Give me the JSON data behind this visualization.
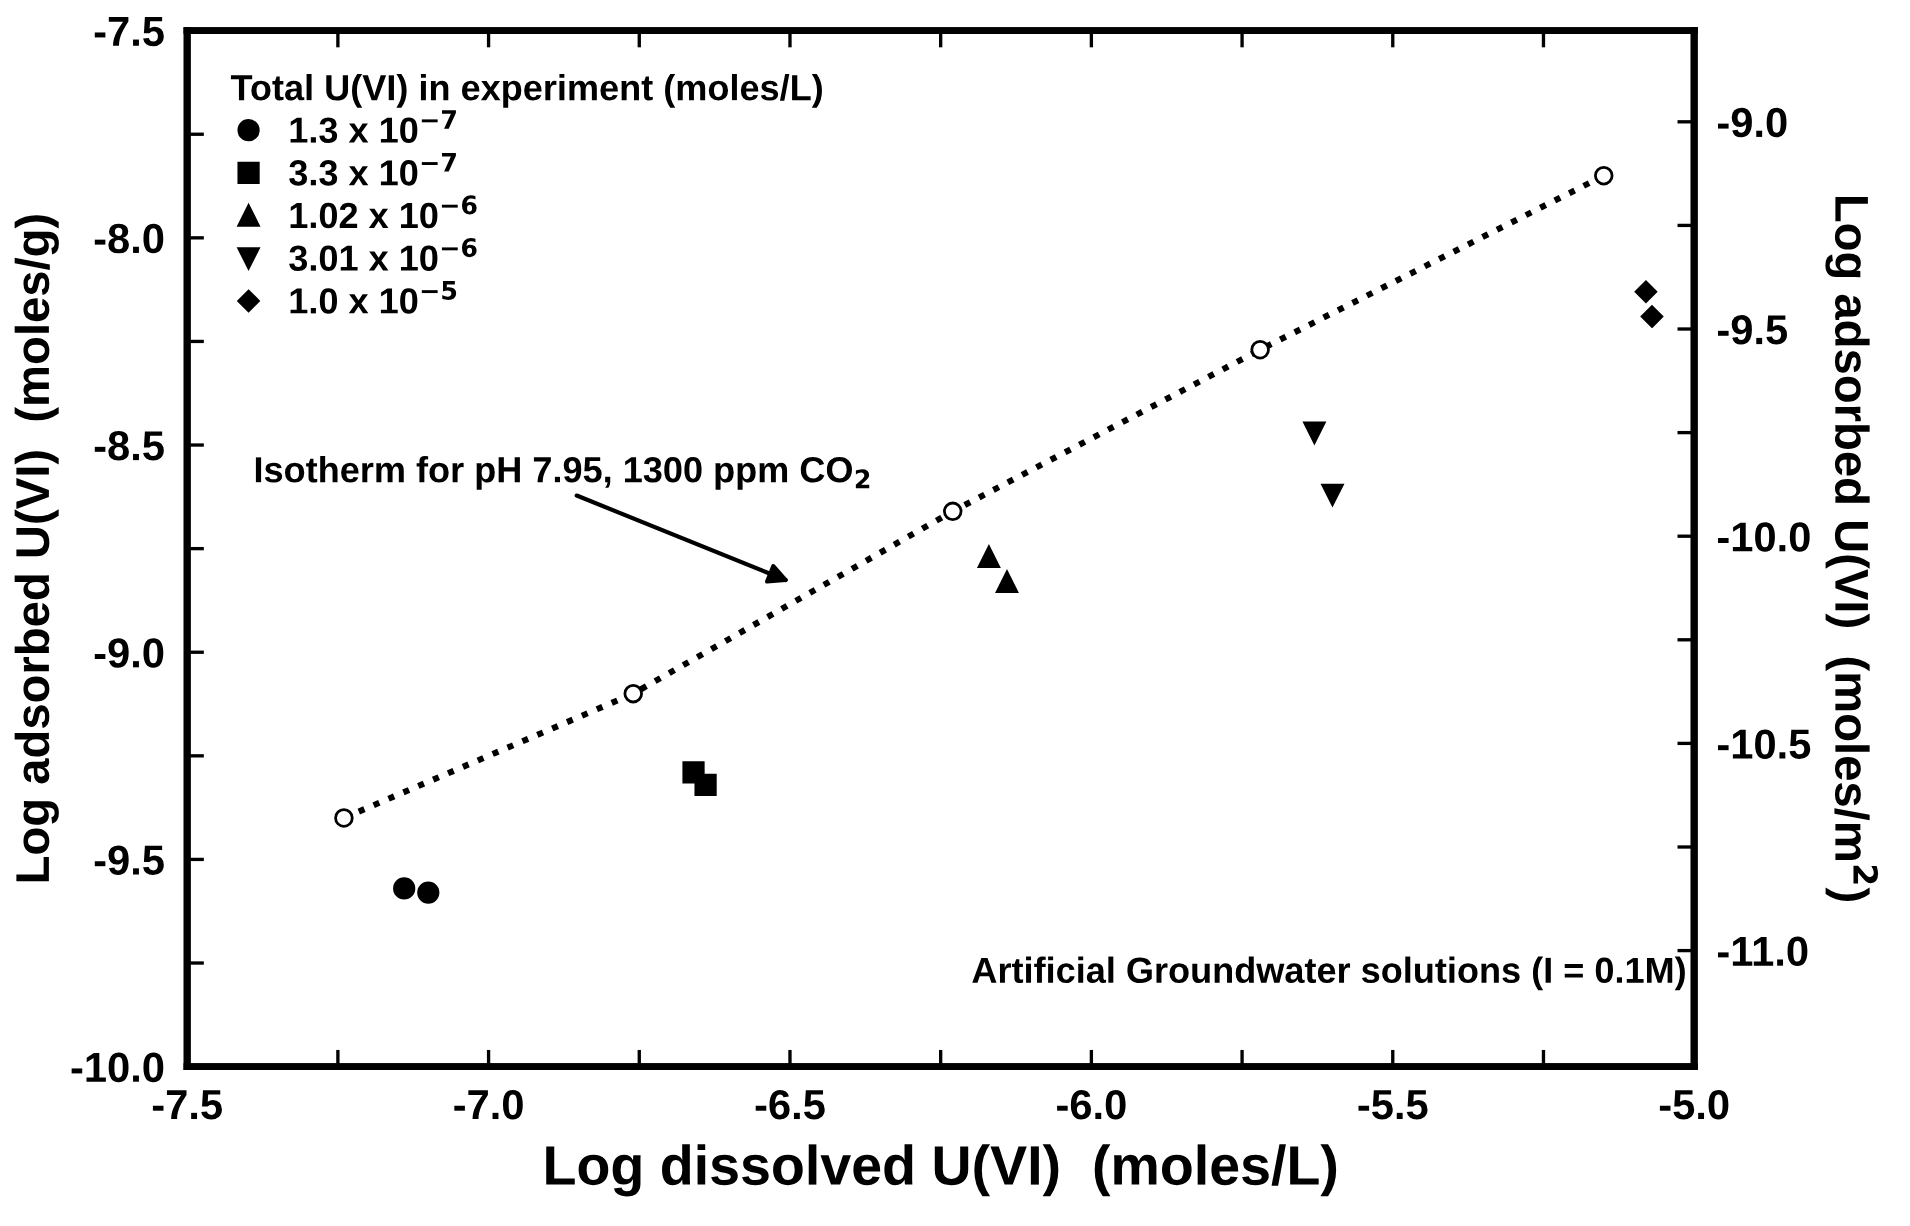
{
  "chart_data": {
    "type": "scatter",
    "xlabel": "Log dissolved U(VI)  (moles/L)",
    "ylabel": "Log adsorbed U(VI)  (moles/g)",
    "y2label": "Log adsorbed U(VI)  (moles/m$^{2}$)",
    "legend_title": "Total U(VI) in experiment (moles/L)",
    "legend": "top left",
    "grid": false,
    "xlim": [
      -7.5,
      -5.0
    ],
    "xticks": [
      -7.5,
      {
        "value": -7.25,
        "label": null
      },
      {
        "value": -7.0,
        "label": "-7.0"
      },
      {
        "value": -6.75,
        "label": null
      },
      -6.5,
      {
        "value": -6.25,
        "label": null
      },
      {
        "value": -6.0,
        "label": "-6.0"
      },
      {
        "value": -5.75,
        "label": null
      },
      -5.5,
      {
        "value": -5.25,
        "label": null
      },
      {
        "value": -5.0,
        "label": "-5.0"
      }
    ],
    "ylim": [
      -10.0,
      -7.5
    ],
    "yticks": [
      {
        "value": -10.0,
        "label": "-10.0"
      },
      {
        "value": -9.75,
        "label": null
      },
      -9.5,
      {
        "value": -9.25,
        "label": null
      },
      {
        "value": -9.0,
        "label": "-9.0"
      },
      {
        "value": -8.75,
        "label": null
      },
      -8.5,
      {
        "value": -8.25,
        "label": null
      },
      {
        "value": -8.0,
        "label": "-8.0"
      },
      {
        "value": -7.75,
        "label": null
      },
      -7.5
    ],
    "y2lim": [
      -11.28,
      -8.78
    ],
    "y2ticks": [
      {
        "value": -11.0,
        "label": "-11.0"
      },
      {
        "value": -10.75,
        "label": null
      },
      -10.5,
      {
        "value": -10.25,
        "label": null
      },
      {
        "value": -10.0,
        "label": "-10.0"
      },
      {
        "value": -9.75,
        "label": null
      },
      -9.5,
      {
        "value": -9.25,
        "label": null
      },
      {
        "value": -9.0,
        "label": "-9.0"
      }
    ],
    "annotations": [
      "Isotherm for pH 7.95, 1300 ppm CO$_{2}$",
      "Artificial Groundwater solutions (I = 0.1M)"
    ],
    "series": [
      {
        "name": "1.3 x 10$^{−7}$",
        "color": "#000000",
        "marker": "circle",
        "x": [
          -7.14,
          -7.1
        ],
        "values": [
          -9.57,
          -9.58
        ]
      },
      {
        "name": "3.3 x 10$^{−7}$",
        "color": "#000000",
        "marker": "square",
        "x": [
          -6.66,
          -6.64
        ],
        "values": [
          -9.29,
          -9.32
        ]
      },
      {
        "name": "1.02 x 10$^{−6}$",
        "color": "#000000",
        "marker": "triangle",
        "x": [
          -6.17,
          -6.14
        ],
        "values": [
          -8.77,
          -8.83
        ]
      },
      {
        "name": "3.01 x 10$^{−6}$",
        "color": "#000000",
        "marker": "triangle_down",
        "x": [
          -5.63,
          -5.6
        ],
        "values": [
          -8.47,
          -8.62
        ]
      },
      {
        "name": "1.0 x 10$^{−5}$",
        "color": "#000000",
        "marker": "diamond",
        "x": [
          -5.08,
          -5.07
        ],
        "values": [
          -8.13,
          -8.19
        ]
      },
      {
        "type": "line",
        "color": "#000000",
        "marker": "circle",
        "line_style": "dotted",
        "x": [
          -7.24,
          -6.76,
          -6.23,
          -5.72,
          -5.15
        ],
        "values": [
          -9.4,
          -9.1,
          -8.66,
          -8.27,
          -7.85
        ]
      }
    ]
  }
}
